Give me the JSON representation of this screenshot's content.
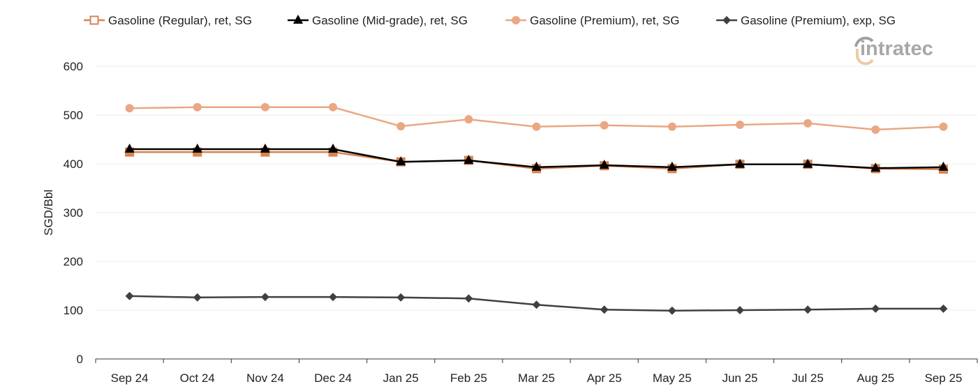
{
  "logo_text": "intratec",
  "chart_data": {
    "type": "line",
    "title": "",
    "xlabel": "",
    "ylabel": "SGD/Bbl",
    "ylim": [
      0,
      600
    ],
    "yticks": [
      0,
      100,
      200,
      300,
      400,
      500,
      600
    ],
    "grid": true,
    "legend_position": "top",
    "categories": [
      "Sep 24",
      "Oct 24",
      "Nov 24",
      "Dec 24",
      "Jan 25",
      "Feb 25",
      "Mar 25",
      "Apr 25",
      "May 25",
      "Jun 25",
      "Jul 25",
      "Aug 25",
      "Sep 25"
    ],
    "series": [
      {
        "name": "Gasoline (Regular), ret, SG",
        "color": "#d9834f",
        "marker": "square",
        "values": [
          424,
          424,
          424,
          424,
          404,
          407,
          390,
          396,
          390,
          399,
          399,
          390,
          389
        ]
      },
      {
        "name": "Gasoline (Mid-grade), ret, SG",
        "color": "#000000",
        "marker": "triangle",
        "values": [
          430,
          430,
          430,
          430,
          404,
          407,
          393,
          397,
          393,
          399,
          399,
          391,
          393
        ]
      },
      {
        "name": "Gasoline (Premium), ret, SG",
        "color": "#eaa783",
        "marker": "circle",
        "values": [
          514,
          516,
          516,
          516,
          477,
          491,
          476,
          479,
          476,
          480,
          483,
          470,
          476
        ]
      },
      {
        "name": "Gasoline (Premium), exp, SG",
        "color": "#404040",
        "marker": "diamond",
        "values": [
          129,
          126,
          127,
          127,
          126,
          124,
          111,
          101,
          99,
          100,
          101,
          103,
          103
        ]
      }
    ]
  }
}
